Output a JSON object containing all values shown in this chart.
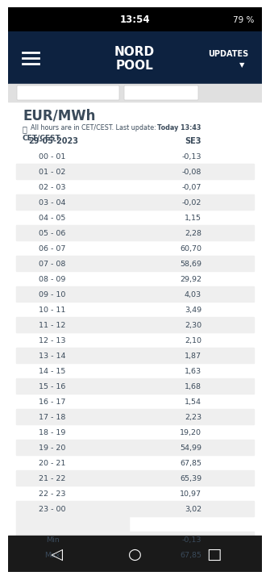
{
  "status_bar_text": "13:54",
  "status_bar_right": "79 %",
  "header_bg": "#0d2240",
  "header_updates": "UPDATES",
  "unit": "EUR/MWh",
  "clock_note1": "All hours are in CET/CEST. Last update: ",
  "clock_note_bold": "Today 13:43",
  "timezone": "CET/CEST.",
  "date_col": "29-05-2023",
  "price_col": "SE3",
  "hours": [
    "00 - 01",
    "01 - 02",
    "02 - 03",
    "03 - 04",
    "04 - 05",
    "05 - 06",
    "06 - 07",
    "07 - 08",
    "08 - 09",
    "09 - 10",
    "10 - 11",
    "11 - 12",
    "12 - 13",
    "13 - 14",
    "14 - 15",
    "15 - 16",
    "16 - 17",
    "17 - 18",
    "18 - 19",
    "19 - 20",
    "20 - 21",
    "21 - 22",
    "22 - 23",
    "23 - 00"
  ],
  "prices": [
    "-0,13",
    "-0,08",
    "-0,07",
    "-0,02",
    "1,15",
    "2,28",
    "60,70",
    "58,69",
    "29,92",
    "4,03",
    "3,49",
    "2,30",
    "2,10",
    "1,87",
    "1,63",
    "1,68",
    "1,54",
    "2,23",
    "19,20",
    "54,99",
    "67,85",
    "65,39",
    "10,97",
    "3,02"
  ],
  "min_label": "Min",
  "min_val": "-0,13",
  "max_label": "Max",
  "max_val": "67,85",
  "bg_color": "#ffffff",
  "row_alt_color": "#efefef",
  "text_color": "#3a4a5a",
  "nav_bg": "#1a1a1a",
  "status_bg": "#000000"
}
